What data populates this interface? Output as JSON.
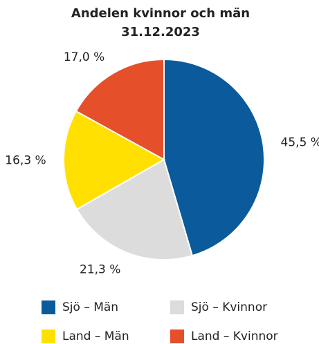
{
  "chart_data": {
    "type": "pie",
    "title": [
      "Andelen kvinnor och män",
      "31.12.2023"
    ],
    "categories": [
      "Sjö – Män",
      "Sjö – Kvinnor",
      "Land – Män",
      "Land – Kvinnor"
    ],
    "values": [
      45.5,
      21.3,
      16.3,
      17.0
    ],
    "value_labels": [
      "45,5 %",
      "21,3 %",
      "16,3 %",
      "17,0 %"
    ],
    "colors": [
      "#0a5a9c",
      "#dcdcdc",
      "#ffe000",
      "#e5502a"
    ]
  }
}
